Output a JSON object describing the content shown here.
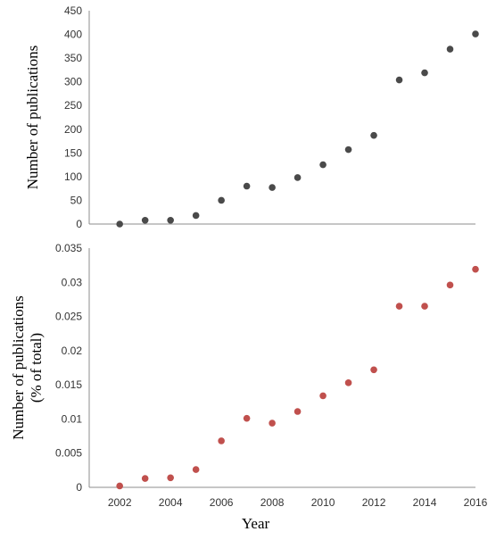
{
  "chart_data": [
    {
      "type": "scatter",
      "ylabel": "Number of publications",
      "ylim": [
        0,
        450
      ],
      "yticks": [
        "0",
        "50",
        "100",
        "150",
        "200",
        "250",
        "300",
        "350",
        "400",
        "450"
      ],
      "xlim": [
        2000.8,
        2016
      ],
      "grid": false,
      "series": [
        {
          "color": "#4a4a4a",
          "x": [
            2002,
            2003,
            2004,
            2005,
            2006,
            2007,
            2008,
            2009,
            2010,
            2011,
            2012,
            2013,
            2014,
            2015,
            2016
          ],
          "y": [
            0,
            8,
            8,
            18,
            50,
            80,
            77,
            98,
            125,
            157,
            187,
            304,
            319,
            369,
            401
          ]
        }
      ]
    },
    {
      "type": "scatter",
      "ylabel": "Number of publications\n(% of total)",
      "xlabel": "Year",
      "ylim": [
        0,
        0.035
      ],
      "yticks": [
        "0",
        "0.005",
        "0.01",
        "0.015",
        "0.02",
        "0.025",
        "0.03",
        "0.035"
      ],
      "xlim": [
        2000.8,
        2016
      ],
      "xticks": [
        "2002",
        "2004",
        "2006",
        "2008",
        "2010",
        "2012",
        "2014",
        "2016"
      ],
      "grid": false,
      "series": [
        {
          "color": "#c0504d",
          "x": [
            2002,
            2003,
            2004,
            2005,
            2006,
            2007,
            2008,
            2009,
            2010,
            2011,
            2012,
            2013,
            2014,
            2015,
            2016
          ],
          "y": [
            0.0002,
            0.0013,
            0.0014,
            0.0026,
            0.0068,
            0.0101,
            0.0094,
            0.0111,
            0.0134,
            0.0153,
            0.0172,
            0.0265,
            0.0265,
            0.0296,
            0.0319
          ]
        }
      ]
    }
  ]
}
